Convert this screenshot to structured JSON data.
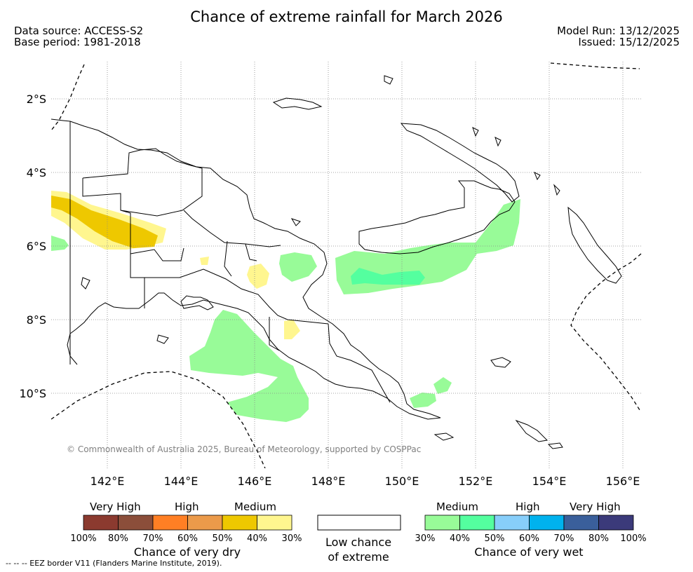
{
  "title": "Chance of extreme rainfall for March 2026",
  "meta": {
    "data_source": "Data source: ACCESS-S2",
    "base_period": "Base period: 1981-2018",
    "model_run": "Model Run: 13/12/2025",
    "issued": "Issued: 15/12/2025"
  },
  "map": {
    "lat_labels": [
      "2°S",
      "4°S",
      "6°S",
      "8°S",
      "10°S"
    ],
    "lon_labels": [
      "142°E",
      "144°E",
      "146°E",
      "148°E",
      "150°E",
      "152°E",
      "154°E",
      "156°E"
    ],
    "copyright": "© Commonwealth of Australia 2025, Bureau of Meteorology, supported by COSPPac"
  },
  "legend": {
    "dry": {
      "categories": [
        "Very High",
        "High",
        "Medium"
      ],
      "colors": [
        "#8b3a2f",
        "#8b4e3a",
        "#ff7f24",
        "#eb9a4a",
        "#eec800",
        "#fff68f"
      ],
      "ticks": [
        "100%",
        "80%",
        "70%",
        "60%",
        "50%",
        "40%",
        "30%"
      ],
      "title": "Chance of very dry"
    },
    "low": {
      "line1": "Low chance",
      "line2": "of extreme"
    },
    "wet": {
      "categories": [
        "Medium",
        "High",
        "Very High"
      ],
      "colors": [
        "#98fb98",
        "#54ff9f",
        "#87cefa",
        "#00b2ee",
        "#3a5f9b",
        "#3b3a7a"
      ],
      "ticks": [
        "30%",
        "40%",
        "50%",
        "60%",
        "70%",
        "80%",
        "100%"
      ],
      "title": "Chance of very wet"
    }
  },
  "footnote": "--  --  -- EEZ border V11 (Flanders Marine Institute, 2019)."
}
